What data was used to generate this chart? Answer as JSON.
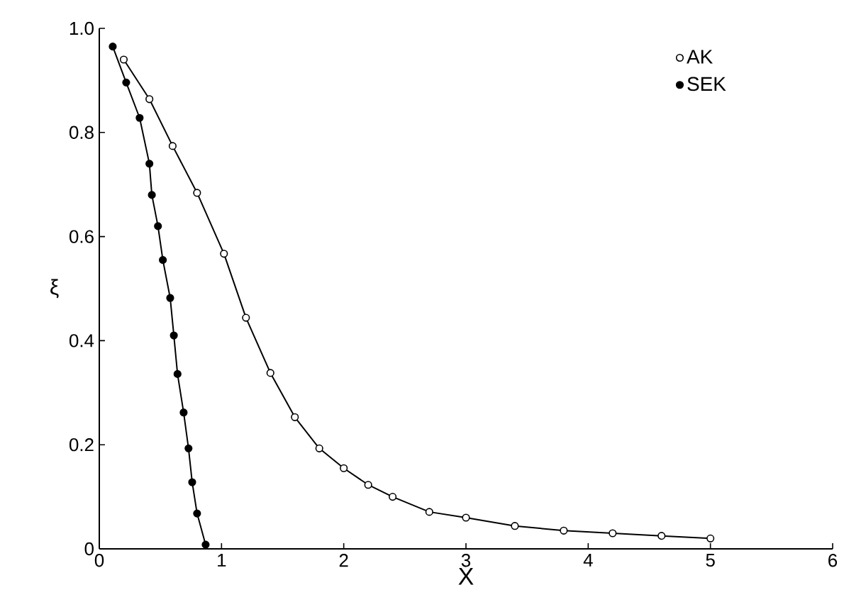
{
  "chart_data": {
    "type": "line",
    "xlabel": "X",
    "ylabel": "ξ",
    "xlim": [
      0,
      6
    ],
    "ylim": [
      0,
      1.0
    ],
    "xticks": [
      0,
      1,
      2,
      3,
      4,
      5,
      6
    ],
    "yticks": [
      0,
      0.2,
      0.4,
      0.6,
      0.8,
      {
        "value": 1.0,
        "label": "1.0"
      }
    ],
    "marker": "circle",
    "legend": "top right",
    "grid": false,
    "series": [
      {
        "name": "AK",
        "color": "#ffffff",
        "x": [
          0.2,
          0.41,
          0.6,
          0.8,
          1.02,
          1.2,
          1.4,
          1.6,
          1.8,
          2.0,
          2.2,
          2.4,
          2.7,
          3.0,
          3.4,
          3.8,
          4.2,
          4.6,
          5.0
        ],
        "values": [
          0.94,
          0.864,
          0.774,
          0.684,
          0.567,
          0.444,
          0.338,
          0.253,
          0.193,
          0.155,
          0.123,
          0.1,
          0.071,
          0.06,
          0.044,
          0.035,
          0.03,
          0.025,
          0.02
        ]
      },
      {
        "name": "SEK",
        "color": "#000000",
        "x": [
          0.11,
          0.22,
          0.33,
          0.41,
          0.43,
          0.48,
          0.52,
          0.58,
          0.61,
          0.64,
          0.69,
          0.73,
          0.76,
          0.8,
          0.87
        ],
        "values": [
          0.965,
          0.896,
          0.828,
          0.74,
          0.68,
          0.62,
          0.555,
          0.482,
          0.41,
          0.336,
          0.262,
          0.193,
          0.128,
          0.068,
          0.008
        ]
      }
    ]
  }
}
